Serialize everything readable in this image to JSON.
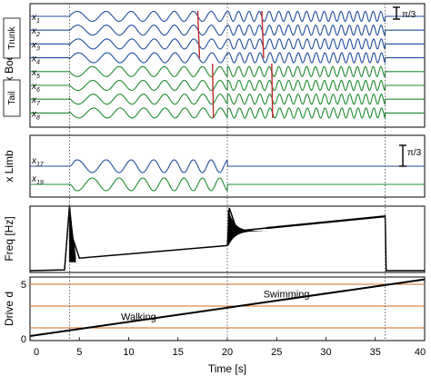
{
  "colors": {
    "trunk": "#1f4e9c",
    "tail": "#1e8c2e",
    "limb_blue": "#1f4e9c",
    "limb_green": "#1e8c2e",
    "marker": "#c0282d",
    "thresh": "#d2691e",
    "black": "#000000"
  },
  "chart_data": [
    {
      "id": "body",
      "type": "line",
      "ylabel": "x Body",
      "xlim": [
        0,
        40
      ],
      "group_labels": [
        "Trunk",
        "Tail"
      ],
      "scale_bar": "π/3",
      "traces": [
        {
          "name": "x",
          "sub": "1",
          "group": "Trunk"
        },
        {
          "name": "x",
          "sub": "2",
          "group": "Trunk"
        },
        {
          "name": "x",
          "sub": "3",
          "group": "Trunk"
        },
        {
          "name": "x",
          "sub": "4",
          "group": "Trunk"
        },
        {
          "name": "x",
          "sub": "5",
          "group": "Tail"
        },
        {
          "name": "x",
          "sub": "6",
          "group": "Tail"
        },
        {
          "name": "x",
          "sub": "7",
          "group": "Tail"
        },
        {
          "name": "x",
          "sub": "8",
          "group": "Tail"
        }
      ],
      "walking_freq_hz": [
        0.3,
        0.6
      ],
      "swimming_freq_hz": [
        0.9,
        1.3
      ],
      "active_range_s": [
        4,
        36
      ],
      "gait_switch_s": 20,
      "phase_markers_s": [
        [
          17,
          18.5
        ],
        [
          23.5,
          24.5
        ]
      ]
    },
    {
      "id": "limb",
      "type": "line",
      "ylabel": "x Limb",
      "xlim": [
        0,
        40
      ],
      "scale_bar": "π/3",
      "traces": [
        {
          "name": "x",
          "sub": "17"
        },
        {
          "name": "x",
          "sub": "19"
        }
      ],
      "active_range_s": [
        4,
        20
      ]
    },
    {
      "id": "freq",
      "type": "line",
      "ylabel": "Freq [Hz]",
      "xlim": [
        0,
        40
      ],
      "ylim": [
        0,
        1.5
      ],
      "series": [
        {
          "x": [
            0,
            3.5,
            4,
            4.3,
            5,
            20
          ],
          "y": [
            0,
            0.02,
            1.55,
            0.8,
            0.3,
            0.6
          ]
        },
        {
          "x": [
            20,
            20.2,
            21,
            36,
            36.1,
            40
          ],
          "y": [
            0.6,
            1.5,
            0.95,
            1.3,
            0,
            0
          ]
        }
      ]
    },
    {
      "id": "drive",
      "type": "line",
      "ylabel": "Drive d",
      "xlabel": "Time [s]",
      "xlim": [
        0,
        40
      ],
      "ylim": [
        0,
        5.5
      ],
      "yticks": [
        0,
        5
      ],
      "xticks": [
        0,
        5,
        10,
        15,
        20,
        25,
        30,
        35,
        40
      ],
      "series": [
        {
          "x": [
            0,
            40
          ],
          "y": [
            0.25,
            5.45
          ]
        }
      ],
      "thresholds": [
        1,
        3,
        5
      ],
      "annotations": [
        {
          "text": "Walking",
          "x": 11,
          "y": 1.7
        },
        {
          "text": "Swimming",
          "x": 26,
          "y": 3.8
        }
      ]
    }
  ],
  "dotted_markers_s": [
    4,
    20,
    36
  ]
}
